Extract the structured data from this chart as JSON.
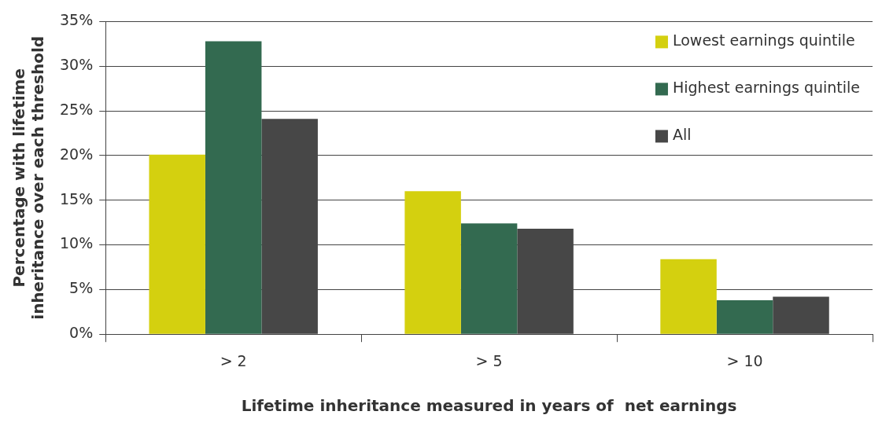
{
  "chart_data": {
    "type": "bar",
    "xlabel": "Lifetime inheritance measured in years of  net earnings",
    "ylabel": "Percentage with lifetime\ninheritance over each threshold",
    "categories": [
      "> 2",
      "> 5",
      "> 10"
    ],
    "series": [
      {
        "name": "Lowest earnings quintile",
        "color": "#d4d00f",
        "values": [
          20.1,
          16.0,
          8.4
        ]
      },
      {
        "name": "Highest earnings quintile",
        "color": "#336a50",
        "values": [
          32.8,
          12.4,
          3.8
        ]
      },
      {
        "name": "All",
        "color": "#474747",
        "values": [
          24.1,
          11.8,
          4.2
        ]
      }
    ],
    "ylim": [
      0,
      35
    ],
    "yticks": [
      {
        "value": 0,
        "label": "0%"
      },
      {
        "value": 5,
        "label": "5%"
      },
      {
        "value": 10,
        "label": "10%"
      },
      {
        "value": 15,
        "label": "15%"
      },
      {
        "value": 20,
        "label": "20%"
      },
      {
        "value": 25,
        "label": "25%"
      },
      {
        "value": 30,
        "label": "30%"
      },
      {
        "value": 35,
        "label": "35%"
      }
    ],
    "grid": "y",
    "legend": "top right"
  }
}
